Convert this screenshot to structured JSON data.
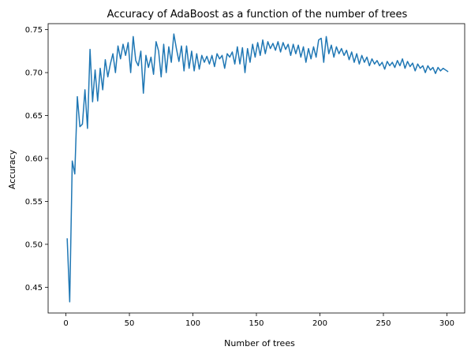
{
  "chart_data": {
    "type": "line",
    "title": "Accuracy of AdaBoost as a function of the number of trees",
    "xlabel": "Number of trees",
    "ylabel": "Accuracy",
    "xlim": [
      -14,
      314
    ],
    "ylim": [
      0.42,
      0.757
    ],
    "x_ticks": [
      0,
      50,
      100,
      150,
      200,
      250,
      300
    ],
    "y_ticks": [
      0.45,
      0.5,
      0.55,
      0.6,
      0.65,
      0.7,
      0.75
    ],
    "y_tick_labels": [
      "0.45",
      "0.50",
      "0.55",
      "0.60",
      "0.65",
      "0.70",
      "0.75"
    ],
    "grid": false,
    "series_color": "#1f77b4",
    "series": [
      {
        "x": [
          1,
          3,
          5,
          7,
          9,
          11,
          13,
          15,
          17,
          19,
          21,
          23,
          25,
          27,
          29,
          31,
          33,
          35,
          37,
          39,
          41,
          43,
          45,
          47,
          49,
          51,
          53,
          55,
          57,
          59,
          61,
          63,
          65,
          67,
          69,
          71,
          73,
          75,
          77,
          79,
          81,
          83,
          85,
          87,
          89,
          91,
          93,
          95,
          97,
          99,
          101,
          103,
          105,
          107,
          109,
          111,
          113,
          115,
          117,
          119,
          121,
          123,
          125,
          127,
          129,
          131,
          133,
          135,
          137,
          139,
          141,
          143,
          145,
          147,
          149,
          151,
          153,
          155,
          157,
          159,
          161,
          163,
          165,
          167,
          169,
          171,
          173,
          175,
          177,
          179,
          181,
          183,
          185,
          187,
          189,
          191,
          193,
          195,
          197,
          199,
          201,
          203,
          205,
          207,
          209,
          211,
          213,
          215,
          217,
          219,
          221,
          223,
          225,
          227,
          229,
          231,
          233,
          235,
          237,
          239,
          241,
          243,
          245,
          247,
          249,
          251,
          253,
          255,
          257,
          259,
          261,
          263,
          265,
          267,
          269,
          271,
          273,
          275,
          277,
          279,
          281,
          283,
          285,
          287,
          289,
          291,
          293,
          295,
          297,
          299,
          301
        ],
        "values": [
          0.507,
          0.433,
          0.597,
          0.582,
          0.672,
          0.637,
          0.64,
          0.68,
          0.635,
          0.727,
          0.666,
          0.703,
          0.667,
          0.705,
          0.68,
          0.715,
          0.695,
          0.71,
          0.722,
          0.7,
          0.731,
          0.716,
          0.733,
          0.72,
          0.735,
          0.7,
          0.742,
          0.714,
          0.708,
          0.725,
          0.676,
          0.72,
          0.706,
          0.718,
          0.698,
          0.736,
          0.725,
          0.695,
          0.733,
          0.7,
          0.73,
          0.712,
          0.745,
          0.728,
          0.713,
          0.731,
          0.702,
          0.731,
          0.705,
          0.725,
          0.702,
          0.722,
          0.704,
          0.72,
          0.712,
          0.719,
          0.71,
          0.72,
          0.707,
          0.722,
          0.716,
          0.72,
          0.705,
          0.722,
          0.718,
          0.724,
          0.71,
          0.73,
          0.71,
          0.729,
          0.7,
          0.728,
          0.712,
          0.733,
          0.718,
          0.735,
          0.72,
          0.738,
          0.722,
          0.736,
          0.728,
          0.734,
          0.726,
          0.736,
          0.724,
          0.735,
          0.727,
          0.733,
          0.72,
          0.733,
          0.722,
          0.732,
          0.718,
          0.73,
          0.712,
          0.728,
          0.716,
          0.73,
          0.718,
          0.738,
          0.74,
          0.712,
          0.742,
          0.722,
          0.732,
          0.718,
          0.73,
          0.722,
          0.728,
          0.72,
          0.726,
          0.715,
          0.724,
          0.712,
          0.722,
          0.71,
          0.72,
          0.712,
          0.718,
          0.708,
          0.716,
          0.71,
          0.714,
          0.708,
          0.712,
          0.704,
          0.713,
          0.708,
          0.712,
          0.706,
          0.714,
          0.708,
          0.716,
          0.705,
          0.713,
          0.707,
          0.711,
          0.702,
          0.71,
          0.705,
          0.708,
          0.7,
          0.708,
          0.703,
          0.706,
          0.699,
          0.706,
          0.702,
          0.705,
          0.703,
          0.701
        ]
      }
    ]
  }
}
